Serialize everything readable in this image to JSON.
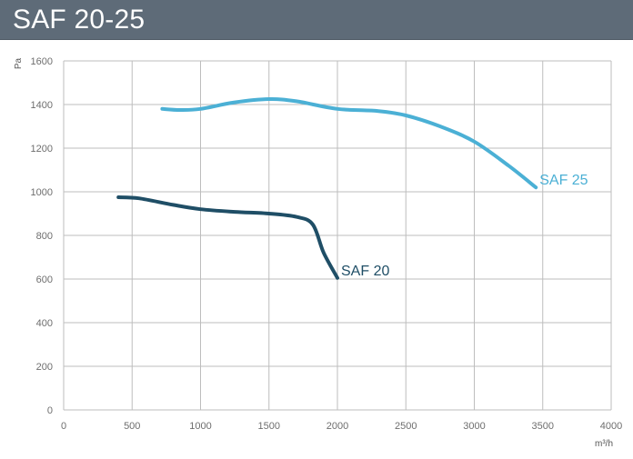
{
  "title": "SAF 20-25",
  "colors": {
    "title_bar": "#5e6b78",
    "title_text": "#ffffff",
    "grid": "#bdbdbd",
    "axis": "#999999",
    "tick_text": "#6e6e6e"
  },
  "chart_data": {
    "type": "line",
    "title": "SAF 20-25",
    "xlabel": "m³/h",
    "ylabel": "Pa",
    "xlim": [
      0,
      4000
    ],
    "ylim": [
      0,
      1600
    ],
    "x_ticks": [
      0,
      500,
      1000,
      1500,
      2000,
      2500,
      3000,
      3500,
      4000
    ],
    "y_ticks": [
      0,
      200,
      400,
      600,
      800,
      1000,
      1200,
      1400,
      1600
    ],
    "grid": true,
    "series": [
      {
        "name": "SAF 20",
        "color": "#1f4e66",
        "x": [
          400,
          550,
          800,
          1000,
          1250,
          1500,
          1700,
          1820,
          1900,
          2000
        ],
        "y": [
          975,
          970,
          940,
          920,
          908,
          900,
          885,
          850,
          720,
          605
        ]
      },
      {
        "name": "SAF 25",
        "color": "#4bb0d5",
        "x": [
          720,
          850,
          1000,
          1250,
          1500,
          1700,
          2000,
          2300,
          2500,
          2750,
          3000,
          3250,
          3450
        ],
        "y": [
          1380,
          1375,
          1380,
          1410,
          1425,
          1415,
          1380,
          1370,
          1350,
          1300,
          1230,
          1120,
          1020
        ]
      }
    ]
  }
}
